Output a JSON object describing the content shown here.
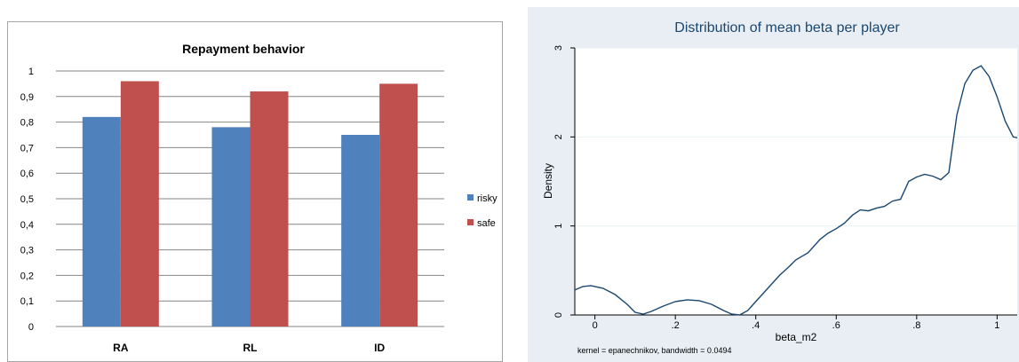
{
  "chart_data": [
    {
      "type": "bar",
      "title": "Repayment behavior",
      "categories": [
        "RA",
        "RL",
        "ID"
      ],
      "series": [
        {
          "name": "risky",
          "color": "#4f81bd",
          "values": [
            0.82,
            0.78,
            0.75
          ]
        },
        {
          "name": "safe",
          "color": "#c0504d",
          "values": [
            0.96,
            0.92,
            0.95
          ]
        }
      ],
      "ylim": [
        0,
        1
      ],
      "yticks": [
        "0",
        "0,1",
        "0,2",
        "0,3",
        "0,4",
        "0,5",
        "0,6",
        "0,7",
        "0,8",
        "0,9",
        "1"
      ],
      "grid": true,
      "legend_position": "right"
    },
    {
      "type": "line",
      "title": "Distribution of mean beta per player",
      "xlabel": "beta_m2",
      "ylabel": "Density",
      "note": "kernel = epanechnikov, bandwidth = 0.0494",
      "xlim": [
        -0.05,
        1.05
      ],
      "ylim": [
        0,
        3
      ],
      "xticks": [
        "0",
        ".2",
        ".4",
        ".6",
        ".8",
        "1"
      ],
      "yticks": [
        "0",
        "1",
        "2",
        "3"
      ],
      "line_color": "#1a476f",
      "grid": true,
      "x": [
        -0.05,
        -0.03,
        -0.01,
        0.0,
        0.02,
        0.05,
        0.08,
        0.1,
        0.12,
        0.14,
        0.17,
        0.2,
        0.23,
        0.26,
        0.29,
        0.32,
        0.34,
        0.36,
        0.38,
        0.4,
        0.42,
        0.44,
        0.46,
        0.48,
        0.5,
        0.53,
        0.56,
        0.58,
        0.6,
        0.62,
        0.64,
        0.66,
        0.68,
        0.7,
        0.72,
        0.74,
        0.76,
        0.78,
        0.8,
        0.82,
        0.84,
        0.86,
        0.88,
        0.9,
        0.92,
        0.94,
        0.96,
        0.98,
        1.0,
        1.02,
        1.04,
        1.05
      ],
      "y": [
        0.28,
        0.32,
        0.33,
        0.32,
        0.3,
        0.23,
        0.12,
        0.03,
        0.01,
        0.04,
        0.1,
        0.15,
        0.17,
        0.16,
        0.12,
        0.05,
        0.01,
        0.0,
        0.05,
        0.15,
        0.25,
        0.35,
        0.45,
        0.53,
        0.62,
        0.7,
        0.85,
        0.92,
        0.97,
        1.03,
        1.12,
        1.18,
        1.17,
        1.2,
        1.22,
        1.28,
        1.3,
        1.5,
        1.55,
        1.58,
        1.56,
        1.52,
        1.6,
        2.25,
        2.6,
        2.75,
        2.8,
        2.68,
        2.45,
        2.18,
        2.0,
        1.99
      ]
    }
  ]
}
